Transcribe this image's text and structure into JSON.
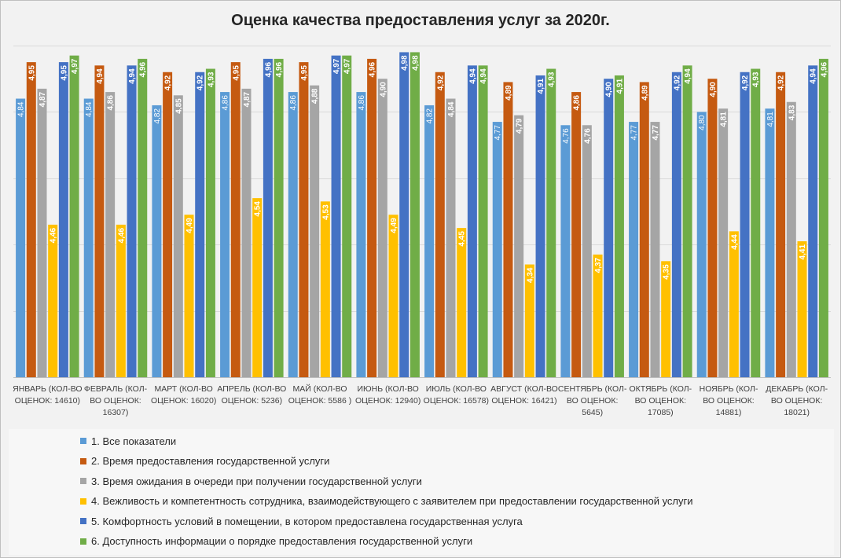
{
  "chart_data": {
    "type": "bar",
    "title": "Оценка качества предоставления услуг за 2020г.",
    "xlabel": "",
    "ylabel": "",
    "ylim": [
      4.0,
      5.0
    ],
    "grid": true,
    "legend_position": "bottom",
    "categories": [
      "ЯНВАРЬ (КОЛ-ВО ОЦЕНОК: 14610)",
      "ФЕВРАЛЬ (КОЛ-ВО ОЦЕНОК: 16307)",
      "МАРТ (КОЛ-ВО ОЦЕНОК: 16020)",
      "АПРЕЛЬ (КОЛ-ВО ОЦЕНОК: 5236)",
      "МАЙ (КОЛ-ВО ОЦЕНОК: 5586 )",
      "ИЮНЬ (КОЛ-ВО ОЦЕНОК: 12940)",
      "ИЮЛЬ (КОЛ-ВО ОЦЕНОК: 16578)",
      "АВГУСТ (КОЛ-ВО ОЦЕНОК: 16421)",
      "СЕНТЯБРЬ (КОЛ-ВО ОЦЕНОК: 5645)",
      "ОКТЯБРЬ (КОЛ-ВО ОЦЕНОК: 17085)",
      "НОЯБРЬ (КОЛ-ВО ОЦЕНОК: 14881)",
      "ДЕКАБРЬ (КОЛ-ВО ОЦЕНОК: 18021)"
    ],
    "category_lines": [
      [
        "ЯНВАРЬ (КОЛ-ВО",
        "ОЦЕНОК: 14610)"
      ],
      [
        "ФЕВРАЛЬ (КОЛ-",
        "ВО ОЦЕНОК:",
        "16307)"
      ],
      [
        "МАРТ (КОЛ-ВО",
        "ОЦЕНОК: 16020)"
      ],
      [
        "АПРЕЛЬ (КОЛ-ВО",
        "ОЦЕНОК: 5236)"
      ],
      [
        "МАЙ (КОЛ-ВО",
        "ОЦЕНОК: 5586 )"
      ],
      [
        "ИЮНЬ (КОЛ-ВО",
        "ОЦЕНОК: 12940)"
      ],
      [
        "ИЮЛЬ (КОЛ-ВО",
        "ОЦЕНОК: 16578)"
      ],
      [
        "АВГУСТ (КОЛ-ВО",
        "ОЦЕНОК: 16421)"
      ],
      [
        "СЕНТЯБРЬ (КОЛ-",
        "ВО ОЦЕНОК:",
        "5645)"
      ],
      [
        "ОКТЯБРЬ (КОЛ-",
        "ВО ОЦЕНОК:",
        "17085)"
      ],
      [
        "НОЯБРЬ (КОЛ-",
        "ВО ОЦЕНОК:",
        "14881)"
      ],
      [
        "ДЕКАБРЬ (КОЛ-",
        "ВО ОЦЕНОК:",
        "18021)"
      ]
    ],
    "series": [
      {
        "name": "1. Все показатели",
        "color": "#5b9bd5",
        "label_color": "#ffffff",
        "values": [
          4.84,
          4.84,
          4.82,
          4.86,
          4.86,
          4.86,
          4.82,
          4.77,
          4.76,
          4.77,
          4.8,
          4.81
        ],
        "labels": [
          "4,84",
          "4,84",
          "4,82",
          "4,86",
          "4,86",
          "4,86",
          "4,82",
          "4,77",
          "4,76",
          "4,77",
          "4,80",
          "4,81"
        ]
      },
      {
        "name": "2. Время предоставления государственной услуги",
        "color": "#c55a11",
        "label_color": "#ffffff",
        "values": [
          4.95,
          4.94,
          4.92,
          4.95,
          4.95,
          4.96,
          4.92,
          4.89,
          4.86,
          4.89,
          4.9,
          4.92
        ],
        "labels": [
          "4,95",
          "4,94",
          "4,92",
          "4,95",
          "4,95",
          "4,96",
          "4,92",
          "4,89",
          "4,86",
          "4,89",
          "4,90",
          "4,92"
        ]
      },
      {
        "name": "3. Время ожидания в очереди при получении государственной услуги",
        "color": "#a5a5a5",
        "label_color": "#ffffff",
        "values": [
          4.87,
          4.86,
          4.85,
          4.87,
          4.88,
          4.9,
          4.84,
          4.79,
          4.76,
          4.77,
          4.81,
          4.83
        ],
        "labels": [
          "4,87",
          "4,86",
          "4,85",
          "4,87",
          "4,88",
          "4,90",
          "4,84",
          "4,79",
          "4,76",
          "4,77",
          "4,81",
          "4,83"
        ]
      },
      {
        "name": "4. Вежливость и компетентность сотрудника, взаимодействующего с заявителем при предоставлении государственной услуги",
        "color": "#ffc000",
        "label_color": "#ffffff",
        "values": [
          4.46,
          4.46,
          4.49,
          4.54,
          4.53,
          4.49,
          4.45,
          4.34,
          4.37,
          4.35,
          4.44,
          4.41
        ],
        "labels": [
          "4,46",
          "4,46",
          "4,49",
          "4,54",
          "4,53",
          "4,49",
          "4,45",
          "4,34",
          "4,37",
          "4,35",
          "4,44",
          "4,41"
        ]
      },
      {
        "name": "5. Комфортность условий в помещении, в котором предоставлена государственная услуга",
        "color": "#4472c4",
        "label_color": "#ffffff",
        "values": [
          4.95,
          4.94,
          4.92,
          4.96,
          4.97,
          4.98,
          4.94,
          4.91,
          4.9,
          4.92,
          4.92,
          4.94
        ],
        "labels": [
          "4,95",
          "4,94",
          "4,92",
          "4,96",
          "4,97",
          "4,98",
          "4,94",
          "4,91",
          "4,90",
          "4,92",
          "4,92",
          "4,94"
        ]
      },
      {
        "name": "6. Доступность информации о порядке предоставления государственной услуги",
        "color": "#70ad47",
        "label_color": "#ffffff",
        "values": [
          4.97,
          4.96,
          4.93,
          4.96,
          4.97,
          4.98,
          4.94,
          4.93,
          4.91,
          4.94,
          4.93,
          4.96
        ],
        "labels": [
          "4,97",
          "4,96",
          "4,93",
          "4,96",
          "4,97",
          "4,98",
          "4,94",
          "4,93",
          "4,91",
          "4,94",
          "4,93",
          "4,96"
        ]
      }
    ]
  }
}
